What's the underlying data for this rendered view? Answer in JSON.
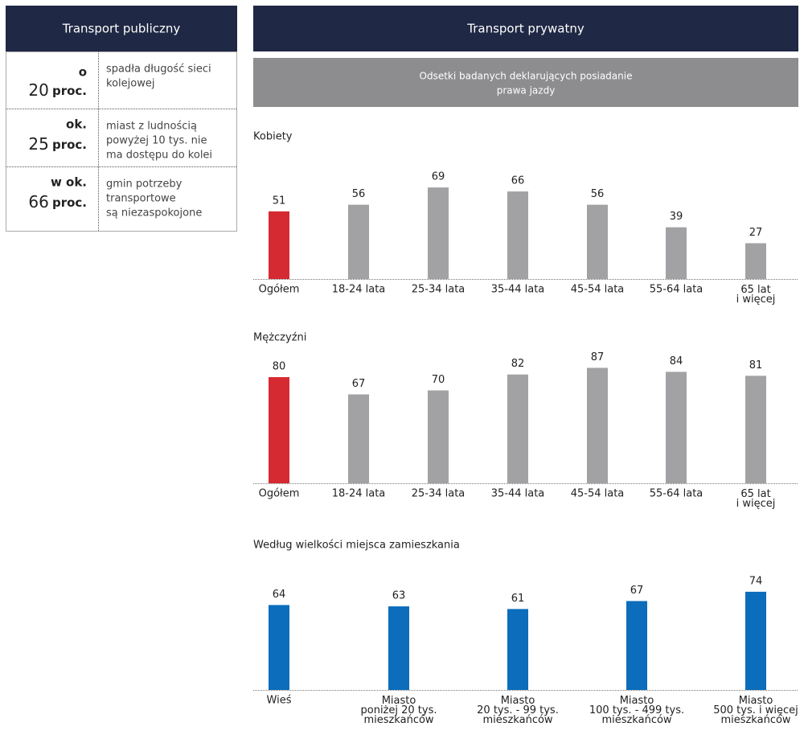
{
  "header": {
    "left_title": "Transport publiczny",
    "right_title": "Transport prywatny",
    "subtitle": [
      "Odsetki badanych deklarujących posiadanie",
      "prawa jazdy"
    ]
  },
  "table": {
    "rows": [
      {
        "prefix": "o",
        "amount": 20,
        "unit": "proc.",
        "lines": [
          "spadła długość sieci",
          "kolejowej"
        ]
      },
      {
        "prefix": "ok.",
        "amount": 25,
        "unit": "proc.",
        "lines": [
          "miast z ludnością",
          "powyżej 10 tys. nie",
          "ma dostępu do kolei"
        ]
      },
      {
        "prefix": "w ok.",
        "amount": 66,
        "unit": "proc.",
        "lines": [
          "gmin potrzeby",
          "transportowe",
          "są niezaspokojone"
        ]
      }
    ]
  },
  "chart_data": [
    {
      "type": "bar",
      "title": "Kobiety",
      "categories": [
        "Ogółem",
        "18-24 lata",
        "25-34 lata",
        "35-44 lata",
        "45-54 lata",
        "55-64 lata",
        "65 lat\ni więcej"
      ],
      "values": [
        51,
        56,
        69,
        66,
        56,
        39,
        27
      ],
      "colors": [
        "#d62a32",
        "#a2a2a5",
        "#a2a2a5",
        "#a2a2a5",
        "#a2a2a5",
        "#a2a2a5",
        "#a2a2a5"
      ]
    },
    {
      "type": "bar",
      "title": "Mężczyźni",
      "categories": [
        "Ogółem",
        "18-24 lata",
        "25-34 lata",
        "35-44 lata",
        "45-54 lata",
        "55-64 lata",
        "65 lat\ni więcej"
      ],
      "values": [
        80,
        67,
        70,
        82,
        87,
        84,
        81
      ],
      "colors": [
        "#d62a32",
        "#a2a2a5",
        "#a2a2a5",
        "#a2a2a5",
        "#a2a2a5",
        "#a2a2a5",
        "#a2a2a5"
      ]
    },
    {
      "type": "bar",
      "title": "Według wielkości miejsca zamieszkania",
      "categories": [
        "Wieś",
        "Miasto\nponiżej 20 tys.\nmieszkańców",
        "Miasto\n20 tys. - 99 tys.\nmieszkańców",
        "Miasto\n100 tys. - 499 tys.\nmieszkańców",
        "Miasto\n500 tys. i więcej\nmieszkańców"
      ],
      "values": [
        64,
        63,
        61,
        67,
        74
      ],
      "colors": [
        "#0b6dbb",
        "#0b6dbb",
        "#0b6dbb",
        "#0b6dbb",
        "#0b6dbb"
      ]
    }
  ]
}
